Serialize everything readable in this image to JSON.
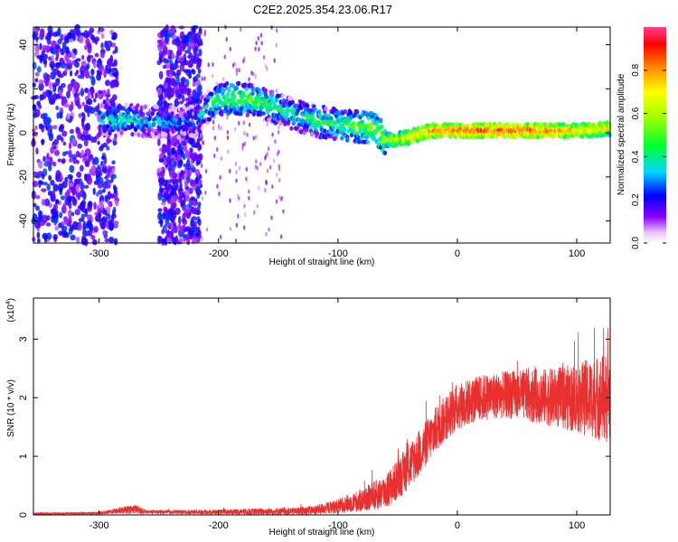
{
  "title": "C2E2.2025.354.23.06.R17",
  "chart_data": [
    {
      "type": "heatmap",
      "title": "",
      "xlabel": "Height of straight line (km)",
      "ylabel": "Frequency (Hz)",
      "xlim": [
        -355,
        128
      ],
      "ylim": [
        -50,
        48
      ],
      "x_ticks": [
        -300,
        -200,
        -100,
        0,
        100
      ],
      "x_tick_labels": [
        "-300",
        "-200",
        "-100",
        "0",
        "100"
      ],
      "y_ticks": [
        -40,
        -20,
        0,
        20,
        40
      ],
      "y_tick_labels": [
        "-40",
        "-20",
        "0",
        "20",
        "40"
      ],
      "colorbar": {
        "label": "Normalized spectral amplitude",
        "range": [
          0,
          1
        ],
        "ticks": [
          0.0,
          0.2,
          0.4,
          0.6,
          0.8
        ],
        "tick_labels": [
          "0.0",
          "0.2",
          "0.4",
          "0.6",
          "0.8"
        ]
      },
      "ridge": {
        "description_points_x": [
          -300,
          -280,
          -260,
          -240,
          -220,
          -205,
          -190,
          -175,
          -160,
          -145,
          -130,
          -115,
          -100,
          -85,
          -70,
          -60,
          -50,
          -40,
          -30,
          -20,
          0,
          20,
          40,
          60,
          80,
          100,
          128
        ],
        "description_points_freq": [
          6,
          6,
          5,
          5,
          5,
          14,
          16,
          15,
          13,
          10,
          7,
          5,
          4,
          3,
          2,
          -3,
          -3,
          -2,
          0,
          1,
          1,
          1,
          1,
          1,
          1,
          1,
          2
        ],
        "amplitude": [
          0.35,
          0.4,
          0.35,
          0.3,
          0.3,
          0.45,
          0.5,
          0.5,
          0.45,
          0.4,
          0.4,
          0.45,
          0.45,
          0.5,
          0.55,
          0.6,
          0.65,
          0.7,
          0.75,
          0.8,
          0.85,
          0.85,
          0.85,
          0.85,
          0.8,
          0.75,
          0.7
        ]
      },
      "noise_bands_x": [
        [
          -355,
          -285
        ],
        [
          -250,
          -215
        ]
      ]
    },
    {
      "type": "line",
      "title": "",
      "xlabel": "Height of straight line (km)",
      "ylabel": "SNR (10 * v/v)",
      "y_multiplier": "(x10",
      "y_multiplier_exp": "4",
      "y_multiplier_close": ")",
      "xlim": [
        -355,
        128
      ],
      "ylim": [
        0,
        3.7
      ],
      "x_ticks": [
        -300,
        -200,
        -100,
        0,
        100
      ],
      "x_tick_labels": [
        "-300",
        "-200",
        "-100",
        "0",
        "100"
      ],
      "y_ticks": [
        0,
        1,
        2,
        3
      ],
      "y_tick_labels": [
        "0",
        "1",
        "2",
        "3"
      ],
      "color": "#e8302f",
      "envelope_x": [
        -355,
        -300,
        -270,
        -260,
        -200,
        -160,
        -140,
        -120,
        -100,
        -80,
        -60,
        -50,
        -40,
        -30,
        -20,
        -10,
        0,
        20,
        40,
        60,
        80,
        100,
        115,
        128
      ],
      "envelope_mean": [
        0.02,
        0.03,
        0.1,
        0.05,
        0.05,
        0.06,
        0.06,
        0.08,
        0.15,
        0.25,
        0.4,
        0.6,
        0.85,
        1.1,
        1.4,
        1.65,
        1.85,
        2.0,
        2.05,
        2.05,
        2.0,
        2.0,
        2.0,
        2.0
      ],
      "envelope_spread": [
        0.02,
        0.02,
        0.08,
        0.03,
        0.04,
        0.06,
        0.06,
        0.08,
        0.12,
        0.2,
        0.3,
        0.35,
        0.4,
        0.4,
        0.4,
        0.4,
        0.4,
        0.4,
        0.4,
        0.45,
        0.5,
        0.6,
        0.7,
        0.8
      ]
    }
  ]
}
